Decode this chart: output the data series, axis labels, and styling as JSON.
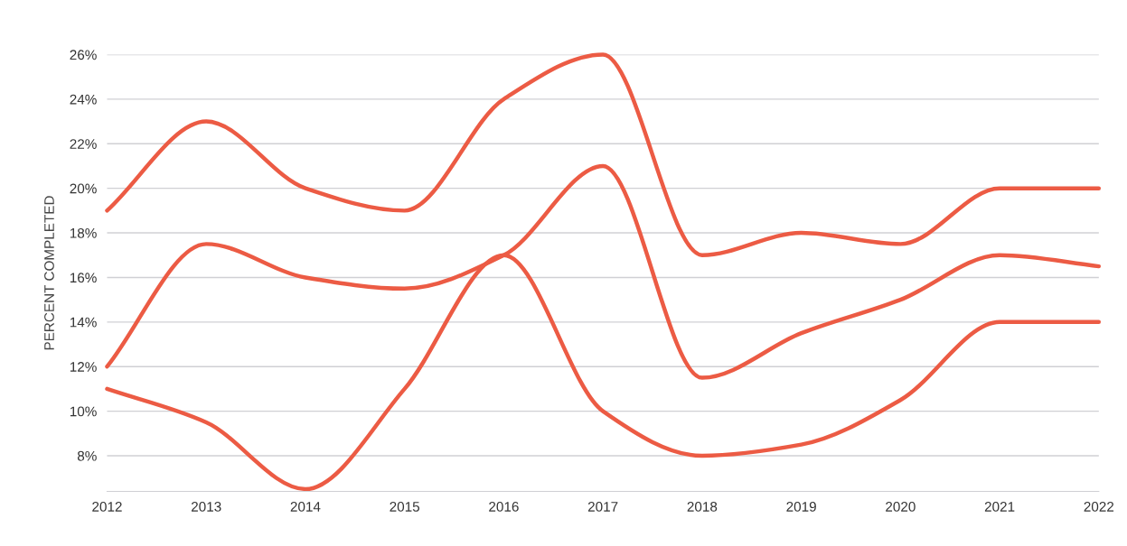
{
  "chart_data": {
    "type": "line",
    "ylabel": "PERCENT COMPLETED",
    "x": [
      2012,
      2013,
      2014,
      2015,
      2016,
      2017,
      2018,
      2019,
      2020,
      2021,
      2022
    ],
    "xlim": [
      2012,
      2022
    ],
    "xticks": [
      2012,
      2013,
      2014,
      2015,
      2016,
      2017,
      2018,
      2019,
      2020,
      2021,
      2022
    ],
    "ylim": [
      6.4,
      26
    ],
    "yticks": [
      {
        "value": 8,
        "label": "8%"
      },
      {
        "value": 10,
        "label": "10%"
      },
      {
        "value": 12,
        "label": "12%"
      },
      {
        "value": 14,
        "label": "14%"
      },
      {
        "value": 16,
        "label": "16%"
      },
      {
        "value": 18,
        "label": "18%"
      },
      {
        "value": 20,
        "label": "20%"
      },
      {
        "value": 22,
        "label": "22%"
      },
      {
        "value": 24,
        "label": "24%"
      },
      {
        "value": 26,
        "label": "26%"
      }
    ],
    "grid": "y",
    "marker": "none",
    "line_style": "solid",
    "series": [
      {
        "color": "#ec5b44",
        "values": [
          19,
          23,
          20,
          19,
          24,
          26,
          17,
          18,
          17.5,
          20,
          20
        ]
      },
      {
        "color": "#ec5b44",
        "values": [
          12,
          17.5,
          16,
          15.5,
          17,
          21,
          11.5,
          13.5,
          15,
          17,
          16.5
        ]
      },
      {
        "color": "#ec5b44",
        "values": [
          11,
          9.5,
          6.5,
          11,
          17,
          10,
          8,
          8.5,
          10.5,
          14,
          14
        ]
      }
    ]
  }
}
